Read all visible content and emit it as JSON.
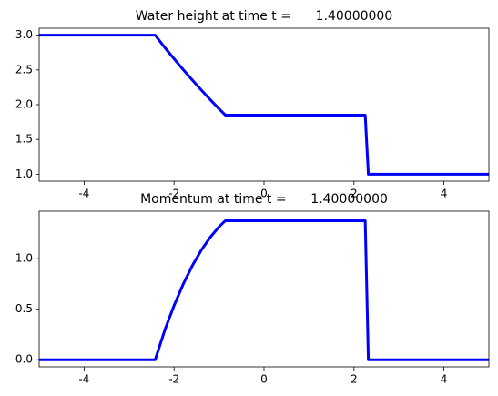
{
  "chart_data": [
    {
      "type": "line",
      "title": "Water height at time t =      1.40000000",
      "x": [
        -5,
        -2.42,
        -2.2,
        -2.0,
        -1.8,
        -1.6,
        -1.4,
        -1.2,
        -1.0,
        -0.86,
        2.25,
        2.32,
        5
      ],
      "values": [
        3.0,
        3.0,
        2.817,
        2.66,
        2.507,
        2.359,
        2.214,
        2.075,
        1.94,
        1.85,
        1.85,
        1.0,
        1.0
      ],
      "color": "#0000ff",
      "xlim": [
        -5,
        5
      ],
      "xticks": [
        -4,
        -2,
        0,
        2,
        4
      ],
      "ylim": [
        0.9,
        3.1
      ],
      "yticks": [
        {
          "value": 1,
          "label": "1.0"
        },
        1.5,
        {
          "value": 2,
          "label": "2.0"
        },
        2.5,
        {
          "value": 3,
          "label": "3.0"
        }
      ]
    },
    {
      "type": "line",
      "title": "Momentum at time t =      1.40000000",
      "x": [
        -5,
        -2.42,
        -2.2,
        -2.0,
        -1.8,
        -1.6,
        -1.4,
        -1.2,
        -1.0,
        -0.86,
        2.25,
        2.32,
        5
      ],
      "values": [
        0,
        0,
        0.302,
        0.537,
        0.745,
        0.926,
        1.081,
        1.21,
        1.316,
        1.376,
        1.376,
        0,
        0
      ],
      "color": "#0000ff",
      "xlim": [
        -5,
        5
      ],
      "xticks": [
        -4,
        -2,
        0,
        2,
        4
      ],
      "ylim": [
        -0.07,
        1.47
      ],
      "yticks": [
        {
          "value": 0,
          "label": "0.0"
        },
        0.5,
        {
          "value": 1,
          "label": "1.0"
        }
      ]
    }
  ]
}
